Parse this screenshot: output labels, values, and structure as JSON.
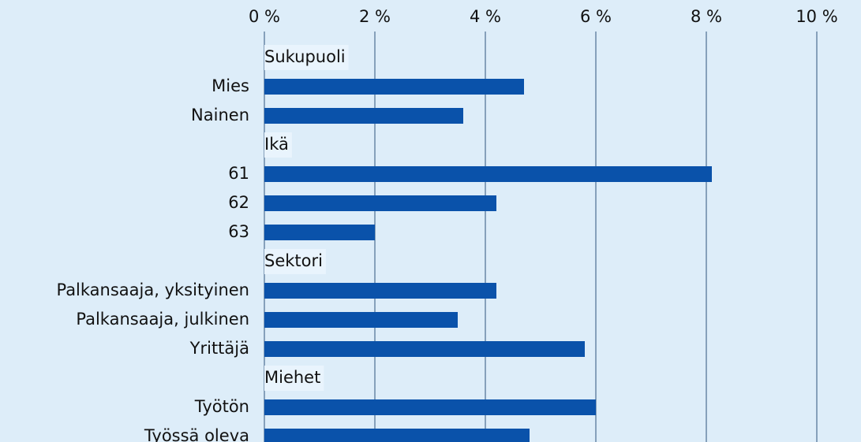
{
  "chart_data": {
    "type": "bar",
    "orientation": "horizontal",
    "color": "#0a52aa",
    "groups": [
      {
        "name": "Sukupuoli",
        "categories": [
          "Mies",
          "Nainen"
        ],
        "values": [
          4.7,
          3.6
        ]
      },
      {
        "name": "Ikä",
        "categories": [
          "61",
          "62",
          "63"
        ],
        "values": [
          8.1,
          4.2,
          2.0
        ]
      },
      {
        "name": "Sektori",
        "categories": [
          "Palkansaaja, yksityinen",
          "Palkansaaja, julkinen",
          "Yrittäjä"
        ],
        "values": [
          4.2,
          3.5,
          5.8
        ]
      },
      {
        "name": "Miehet",
        "categories": [
          "Työtön",
          "Työssä oleva"
        ],
        "values": [
          6.0,
          4.8
        ]
      }
    ],
    "xlim": [
      0,
      10
    ],
    "xticks": [
      {
        "value": 0,
        "label": "0 %"
      },
      {
        "value": 2,
        "label": "2 %"
      },
      {
        "value": 4,
        "label": "4 %"
      },
      {
        "value": 6,
        "label": "6 %"
      },
      {
        "value": 8,
        "label": "8 %"
      },
      {
        "value": 10,
        "label": "10 %"
      }
    ],
    "grid": true
  }
}
